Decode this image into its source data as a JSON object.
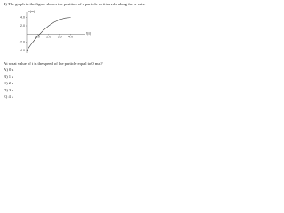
{
  "question": "4) The graph in the figure shows the position of a particle as it travels along the x-axis.",
  "chart_data": {
    "type": "line",
    "y_label": "x(m)",
    "x_label": "t(s)",
    "x": [
      0,
      0.5,
      1,
      1.5,
      2,
      2.5,
      3,
      3.5,
      4
    ],
    "series": [
      {
        "color": "#333333",
        "values": [
          -4,
          -2.125,
          -0.5,
          0.875,
          2,
          2.875,
          3.5,
          3.875,
          4
        ]
      }
    ],
    "xlim": [
      0,
      5
    ],
    "ylim": [
      -4.6,
      5.2
    ],
    "xticks": [
      {
        "value": 1,
        "label": "1.0"
      },
      {
        "value": 2,
        "label": "2.0"
      },
      {
        "value": 3,
        "label": "3.0"
      },
      {
        "value": 4,
        "label": "4.0"
      }
    ],
    "yticks": [
      {
        "value": 4,
        "label": "4.0"
      },
      {
        "value": 2,
        "label": "2.0"
      },
      {
        "value": -2,
        "label": "-2.0"
      },
      {
        "value": -4,
        "label": "-4.0"
      }
    ]
  },
  "prompt": "At what value of t is the speed of the particle equal to 0 m/s?",
  "options": [
    "A) 0 s",
    "B) 1 s",
    "C) 2 s",
    "D) 3 s",
    "E) 4 s"
  ]
}
